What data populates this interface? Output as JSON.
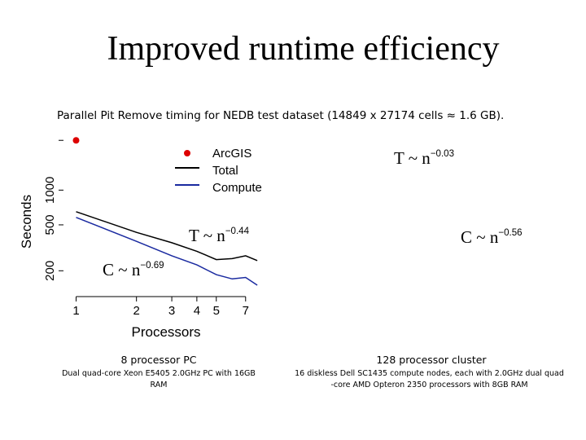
{
  "slide": {
    "title": "Improved runtime efficiency",
    "subtitle": "Parallel Pit Remove timing for NEDB test dataset (14849 x 27174 cells ≈ 1.6 GB).",
    "left_caption": {
      "heading": "8 processor PC",
      "line1": "Dual quad-core Xeon E5405 2.0GHz PC with 16GB",
      "line2": "RAM"
    },
    "right_caption": {
      "heading": "128 processor cluster",
      "line1": "16 diskless Dell SC1435 compute nodes, each with 2.0GHz dual quad",
      "line2": "-core AMD Opteron 2350 processors with 8GB RAM"
    }
  },
  "chart_data": [
    {
      "type": "line",
      "xlabel": "Processors",
      "ylabel": "Seconds",
      "x_scale": "log",
      "y_scale": "log",
      "x_ticks": [
        1,
        2,
        3,
        4,
        5,
        7
      ],
      "y_ticks": [
        200,
        500,
        1000
      ],
      "xlim": [
        0.95,
        8.3
      ],
      "ylim": [
        150,
        2800
      ],
      "legend": {
        "position": "top-right",
        "entries": [
          "ArcGIS",
          "Total",
          "Compute"
        ]
      },
      "series": [
        {
          "name": "ArcGIS",
          "style": "point",
          "color": "#dd0000",
          "x": [
            1
          ],
          "y": [
            2700
          ]
        },
        {
          "name": "Total",
          "color": "#000000",
          "x": [
            1,
            2,
            3,
            4,
            5,
            6,
            7,
            8
          ],
          "y": [
            650,
            430,
            350,
            295,
            250,
            255,
            270,
            245
          ]
        },
        {
          "name": "Compute",
          "color": "#1a2aa0",
          "x": [
            1,
            2,
            3,
            4,
            5,
            6,
            7,
            8
          ],
          "y": [
            580,
            360,
            270,
            225,
            185,
            170,
            175,
            150
          ]
        }
      ],
      "annotations": [
        {
          "base": "T ~ n",
          "exponent": "−0.44"
        },
        {
          "base": "C ~ n",
          "exponent": "−0.69"
        }
      ]
    },
    {
      "type": "line",
      "series": [],
      "annotations": [
        {
          "base": "T ~ n",
          "exponent": "−0.03"
        },
        {
          "base": "C ~ n",
          "exponent": "−0.56"
        }
      ]
    }
  ]
}
